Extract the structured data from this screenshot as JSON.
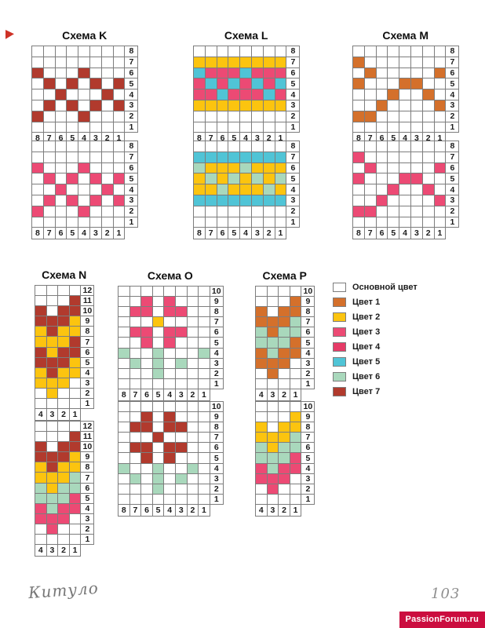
{
  "palette": {
    "0": "#ffffff",
    "1": "#d4702b",
    "2": "#fcc40f",
    "3": "#ec4a74",
    "4": "#e63b67",
    "5": "#50c4d6",
    "6": "#a9d8bc",
    "7": "#b13a2d"
  },
  "charts": [
    {
      "id": "K1",
      "title": "Схема K",
      "col_labels": [
        "8",
        "7",
        "6",
        "5",
        "4",
        "3",
        "2",
        "1"
      ],
      "row_labels": [
        "8",
        "7",
        "6",
        "5",
        "4",
        "3",
        "2",
        "1"
      ],
      "cells": [
        "00000000",
        "00000000",
        "70007000",
        "07070707",
        "00700070",
        "07070707",
        "70007000",
        "00000000"
      ]
    },
    {
      "id": "L1",
      "title": "Схема L",
      "col_labels": [
        "8",
        "7",
        "6",
        "5",
        "4",
        "3",
        "2",
        "1"
      ],
      "row_labels": [
        "8",
        "7",
        "6",
        "5",
        "4",
        "3",
        "2",
        "1"
      ],
      "cells": [
        "00000000",
        "22222222",
        "53335333",
        "35353535",
        "33533353",
        "22222222",
        "00000000",
        "00000000"
      ]
    },
    {
      "id": "M1",
      "title": "Схема M",
      "col_labels": [
        "8",
        "7",
        "6",
        "5",
        "4",
        "3",
        "2",
        "1"
      ],
      "row_labels": [
        "8",
        "7",
        "6",
        "5",
        "4",
        "3",
        "2",
        "1"
      ],
      "cells": [
        "00000000",
        "10000000",
        "01000001",
        "10001100",
        "00010010",
        "00100001",
        "11000000",
        "00000000"
      ]
    },
    {
      "id": "K2",
      "title": "",
      "col_labels": [
        "8",
        "7",
        "6",
        "5",
        "4",
        "3",
        "2",
        "1"
      ],
      "row_labels": [
        "8",
        "7",
        "6",
        "5",
        "4",
        "3",
        "2",
        "1"
      ],
      "cells": [
        "00000000",
        "00000000",
        "30003000",
        "03030303",
        "00300030",
        "03030303",
        "30003000",
        "00000000"
      ]
    },
    {
      "id": "L2",
      "title": "",
      "col_labels": [
        "8",
        "7",
        "6",
        "5",
        "4",
        "3",
        "2",
        "1"
      ],
      "row_labels": [
        "8",
        "7",
        "6",
        "5",
        "4",
        "3",
        "2",
        "1"
      ],
      "cells": [
        "00000000",
        "55555555",
        "62226222",
        "26262626",
        "22622262",
        "55555555",
        "00000000",
        "00000000"
      ]
    },
    {
      "id": "M2",
      "title": "",
      "col_labels": [
        "8",
        "7",
        "6",
        "5",
        "4",
        "3",
        "2",
        "1"
      ],
      "row_labels": [
        "8",
        "7",
        "6",
        "5",
        "4",
        "3",
        "2",
        "1"
      ],
      "cells": [
        "00000000",
        "30000000",
        "03000003",
        "30003300",
        "00030030",
        "00300003",
        "33000000",
        "00000000"
      ]
    },
    {
      "id": "N1",
      "title": "Схема N",
      "col_labels": [
        "4",
        "3",
        "2",
        "1"
      ],
      "row_labels": [
        "12",
        "11",
        "10",
        "9",
        "8",
        "7",
        "6",
        "5",
        "4",
        "3",
        "2",
        "1"
      ],
      "cells": [
        "0000",
        "0007",
        "7077",
        "7772",
        "2722",
        "2227",
        "7277",
        "7772",
        "2722",
        "2220",
        "0200",
        "0000"
      ]
    },
    {
      "id": "O1",
      "title": "Схема O",
      "col_labels": [
        "8",
        "7",
        "6",
        "5",
        "4",
        "3",
        "2",
        "1"
      ],
      "row_labels": [
        "10",
        "9",
        "8",
        "7",
        "6",
        "5",
        "4",
        "3",
        "2",
        "1"
      ],
      "cells": [
        "00000000",
        "00303000",
        "03303300",
        "00020000",
        "03303300",
        "00303000",
        "60060006",
        "06060600",
        "00060000",
        "00000000"
      ]
    },
    {
      "id": "P1",
      "title": "Схема P",
      "col_labels": [
        "4",
        "3",
        "2",
        "1"
      ],
      "row_labels": [
        "10",
        "9",
        "8",
        "7",
        "6",
        "5",
        "4",
        "3",
        "2",
        "1"
      ],
      "cells": [
        "0000",
        "0001",
        "1011",
        "1116",
        "6166",
        "6661",
        "1611",
        "1110",
        "0100",
        "0000"
      ]
    },
    {
      "id": "N2",
      "title": "",
      "col_labels": [
        "4",
        "3",
        "2",
        "1"
      ],
      "row_labels": [
        "12",
        "11",
        "10",
        "9",
        "8",
        "7",
        "6",
        "5",
        "4",
        "3",
        "2",
        "1"
      ],
      "cells": [
        "0000",
        "0007",
        "7077",
        "7772",
        "2722",
        "2226",
        "6266",
        "6663",
        "3633",
        "3330",
        "0300",
        "0000"
      ]
    },
    {
      "id": "O2",
      "title": "",
      "col_labels": [
        "8",
        "7",
        "6",
        "5",
        "4",
        "3",
        "2",
        "1"
      ],
      "row_labels": [
        "10",
        "9",
        "8",
        "7",
        "6",
        "5",
        "4",
        "3",
        "2",
        "1"
      ],
      "cells": [
        "00000000",
        "00707000",
        "07707700",
        "00070000",
        "07707700",
        "00707000",
        "60060060",
        "06060600",
        "00060000",
        "00000000"
      ]
    },
    {
      "id": "P2",
      "title": "",
      "col_labels": [
        "4",
        "3",
        "2",
        "1"
      ],
      "row_labels": [
        "10",
        "9",
        "8",
        "7",
        "6",
        "5",
        "4",
        "3",
        "2",
        "1"
      ],
      "cells": [
        "0000",
        "0002",
        "2022",
        "2226",
        "6266",
        "6663",
        "3633",
        "3330",
        "0300",
        "0000"
      ]
    }
  ],
  "legend": {
    "items": [
      {
        "color": "0",
        "label": "Основной цвет"
      },
      {
        "color": "1",
        "label": "Цвет 1"
      },
      {
        "color": "2",
        "label": "Цвет 2"
      },
      {
        "color": "3",
        "label": "Цвет 3"
      },
      {
        "color": "4",
        "label": "Цвет 4"
      },
      {
        "color": "5",
        "label": "Цвет 5"
      },
      {
        "color": "6",
        "label": "Цвет 6"
      },
      {
        "color": "7",
        "label": "Цвет 7"
      }
    ]
  },
  "footer": {
    "signature": "Китуло",
    "page_number": "103",
    "watermark": "PassionForum.ru"
  }
}
